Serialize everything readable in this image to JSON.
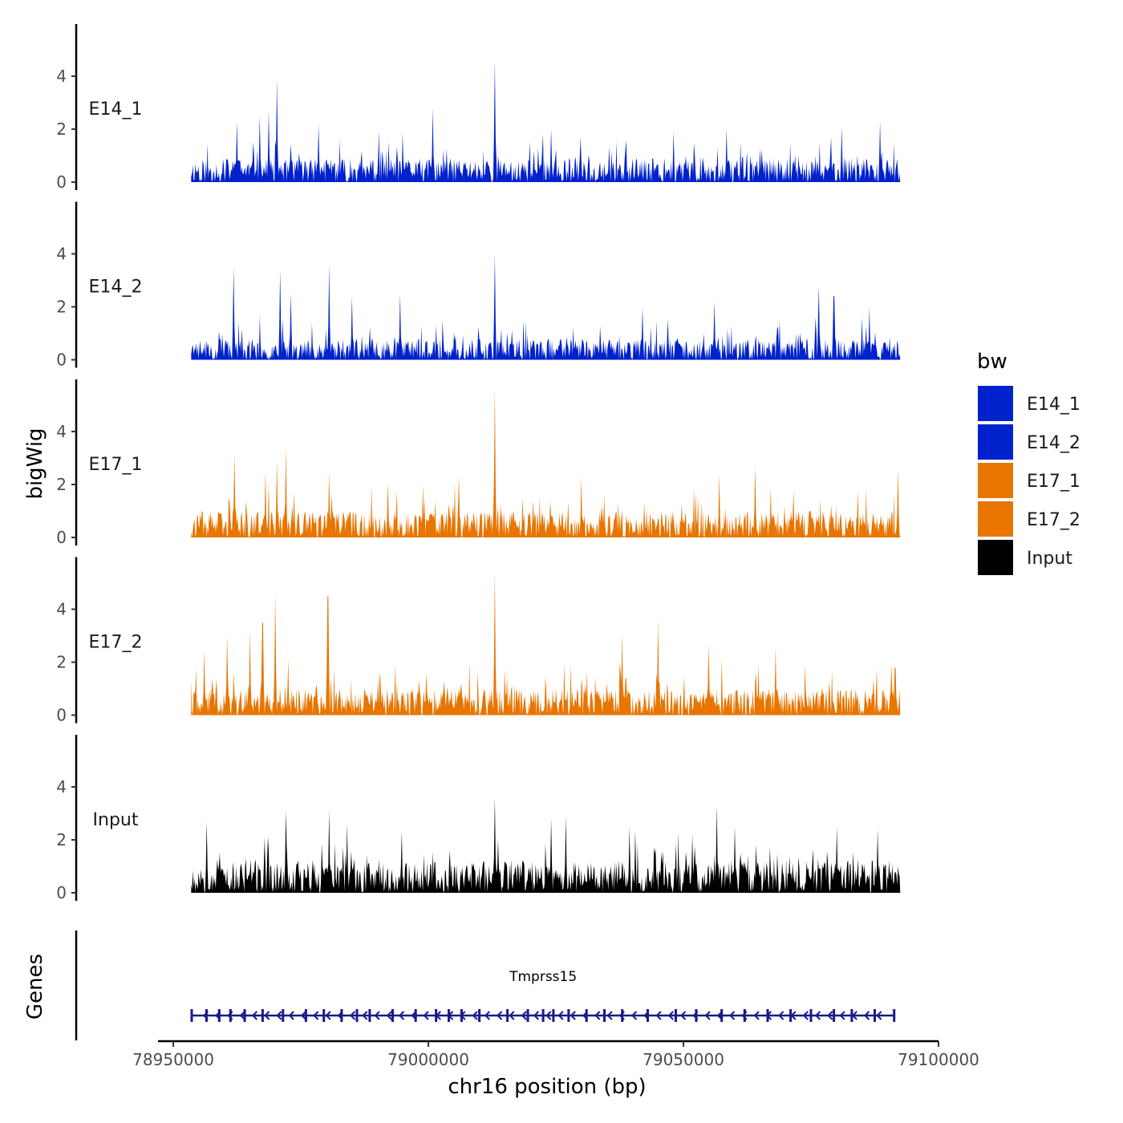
{
  "chart_data": {
    "type": "area",
    "title": "",
    "ylabel": "bigWig",
    "genes_label": "Genes",
    "xlabel": "chr16 position (bp)",
    "xlim": [
      78947000,
      79100000
    ],
    "region": [
      78953500,
      79092500
    ],
    "ylim": [
      0,
      5.9
    ],
    "yticks": [
      0,
      2,
      4
    ],
    "ytick_labels": [
      "0",
      "2",
      "4"
    ],
    "xticks": [
      78950000,
      79000000,
      79050000,
      79100000
    ],
    "xtick_labels": [
      "78950000",
      "79000000",
      "79050000",
      "79100000"
    ],
    "legend": {
      "title": "bw",
      "placement": "right",
      "entries": [
        {
          "label": "E14_1",
          "color": "#0022cc"
        },
        {
          "label": "E14_2",
          "color": "#0022cc"
        },
        {
          "label": "E17_1",
          "color": "#e87500"
        },
        {
          "label": "E17_2",
          "color": "#e87500"
        },
        {
          "label": "Input",
          "color": "#000000"
        }
      ]
    },
    "series": [
      {
        "name": "E14_1",
        "color": "#0022cc",
        "baseline": 0.9,
        "seed": 11,
        "peaks": [
          {
            "x": 78962500,
            "y": 2.3
          },
          {
            "x": 78967000,
            "y": 2.5
          },
          {
            "x": 78968700,
            "y": 2.7
          },
          {
            "x": 78970300,
            "y": 3.9
          },
          {
            "x": 78978500,
            "y": 2.2
          },
          {
            "x": 79000800,
            "y": 2.8
          },
          {
            "x": 79013000,
            "y": 4.6
          },
          {
            "x": 79024000,
            "y": 2.0
          },
          {
            "x": 79048000,
            "y": 1.9
          },
          {
            "x": 79058500,
            "y": 2.0
          },
          {
            "x": 79081000,
            "y": 2.1
          },
          {
            "x": 79088500,
            "y": 2.3
          }
        ]
      },
      {
        "name": "E14_2",
        "color": "#0022cc",
        "baseline": 0.8,
        "seed": 23,
        "peaks": [
          {
            "x": 78961800,
            "y": 3.5
          },
          {
            "x": 78971000,
            "y": 3.4
          },
          {
            "x": 78973000,
            "y": 2.5
          },
          {
            "x": 78980500,
            "y": 3.6
          },
          {
            "x": 78985000,
            "y": 2.4
          },
          {
            "x": 78994500,
            "y": 2.5
          },
          {
            "x": 79013000,
            "y": 4.0
          },
          {
            "x": 79042000,
            "y": 2.0
          },
          {
            "x": 79056000,
            "y": 2.2
          },
          {
            "x": 79076500,
            "y": 2.8
          },
          {
            "x": 79079500,
            "y": 2.4
          },
          {
            "x": 79086500,
            "y": 2.0
          }
        ]
      },
      {
        "name": "E17_1",
        "color": "#e87500",
        "baseline": 1.0,
        "seed": 37,
        "peaks": [
          {
            "x": 78962000,
            "y": 3.2
          },
          {
            "x": 78968000,
            "y": 2.5
          },
          {
            "x": 78970300,
            "y": 2.9
          },
          {
            "x": 78972000,
            "y": 3.4
          },
          {
            "x": 78980500,
            "y": 2.5
          },
          {
            "x": 78992000,
            "y": 2.1
          },
          {
            "x": 79006000,
            "y": 2.3
          },
          {
            "x": 79013000,
            "y": 5.7
          },
          {
            "x": 79030000,
            "y": 2.3
          },
          {
            "x": 79057000,
            "y": 2.4
          },
          {
            "x": 79064000,
            "y": 2.7
          },
          {
            "x": 79092000,
            "y": 2.6
          }
        ]
      },
      {
        "name": "E17_2",
        "color": "#e87500",
        "baseline": 1.0,
        "seed": 41,
        "peaks": [
          {
            "x": 78956000,
            "y": 2.5
          },
          {
            "x": 78960500,
            "y": 3.0
          },
          {
            "x": 78965000,
            "y": 3.2
          },
          {
            "x": 78967500,
            "y": 3.5
          },
          {
            "x": 78970000,
            "y": 4.6
          },
          {
            "x": 78980300,
            "y": 4.5
          },
          {
            "x": 79013000,
            "y": 5.4
          },
          {
            "x": 79038000,
            "y": 3.1
          },
          {
            "x": 79045000,
            "y": 3.6
          },
          {
            "x": 79055000,
            "y": 2.7
          },
          {
            "x": 79068000,
            "y": 2.6
          },
          {
            "x": 79091500,
            "y": 1.8
          }
        ]
      },
      {
        "name": "Input",
        "color": "#000000",
        "baseline": 1.2,
        "seed": 53,
        "peaks": [
          {
            "x": 78956500,
            "y": 2.7
          },
          {
            "x": 78972000,
            "y": 3.1
          },
          {
            "x": 78980500,
            "y": 3.1
          },
          {
            "x": 78984000,
            "y": 2.6
          },
          {
            "x": 79013000,
            "y": 3.6
          },
          {
            "x": 79024000,
            "y": 2.8
          },
          {
            "x": 79027000,
            "y": 2.9
          },
          {
            "x": 79056500,
            "y": 3.3
          },
          {
            "x": 79060000,
            "y": 2.5
          },
          {
            "x": 79080000,
            "y": 2.5
          },
          {
            "x": 79088000,
            "y": 2.4
          }
        ]
      }
    ],
    "gene": {
      "name": "Tmprss15",
      "start": 78953500,
      "end": 79091500,
      "strand": "-",
      "color": "#1a1a8c",
      "exons": [
        78953600,
        78956500,
        78959000,
        78961200,
        78964000,
        78967500,
        78971500,
        78976000,
        78979500,
        78983000,
        78986000,
        78988500,
        78993000,
        78997500,
        79001500,
        79004000,
        79006500,
        79010000,
        79015500,
        79019500,
        79022500,
        79024500,
        79027500,
        79031000,
        79034500,
        79038000,
        79043000,
        79048500,
        79052500,
        79057500,
        79062000,
        79066500,
        79071000,
        79075000,
        79079500,
        79083000,
        79087500,
        79091300
      ]
    }
  }
}
